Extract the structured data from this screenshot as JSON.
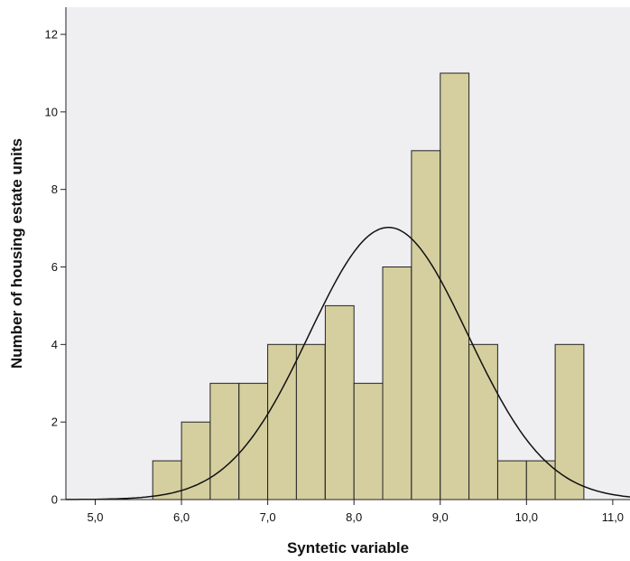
{
  "chart_data": {
    "type": "bar",
    "subtype": "histogram-with-normal-curve",
    "xlabel": "Syntetic variable",
    "ylabel": "Number of housing estate units",
    "xlim": [
      4.66,
      11.2
    ],
    "ylim": [
      0,
      12.7
    ],
    "x_ticks": [
      {
        "value": 5.0,
        "label": "5,0"
      },
      {
        "value": 6.0,
        "label": "6,0"
      },
      {
        "value": 7.0,
        "label": "7,0"
      },
      {
        "value": 8.0,
        "label": "8,0"
      },
      {
        "value": 9.0,
        "label": "9,0"
      },
      {
        "value": 10.0,
        "label": "10,0"
      },
      {
        "value": 11.0,
        "label": "11,0"
      }
    ],
    "y_ticks": [
      {
        "value": 0,
        "label": "0"
      },
      {
        "value": 2,
        "label": "2"
      },
      {
        "value": 4,
        "label": "4"
      },
      {
        "value": 6,
        "label": "6"
      },
      {
        "value": 8,
        "label": "8"
      },
      {
        "value": 10,
        "label": "10"
      },
      {
        "value": 12,
        "label": "12"
      }
    ],
    "bin_width": 0.333,
    "bins": [
      {
        "start": 5.667,
        "count": 1
      },
      {
        "start": 6.0,
        "count": 2
      },
      {
        "start": 6.333,
        "count": 3
      },
      {
        "start": 6.667,
        "count": 3
      },
      {
        "start": 7.0,
        "count": 4
      },
      {
        "start": 7.333,
        "count": 4
      },
      {
        "start": 7.667,
        "count": 5
      },
      {
        "start": 8.0,
        "count": 3
      },
      {
        "start": 8.333,
        "count": 6
      },
      {
        "start": 8.667,
        "count": 9
      },
      {
        "start": 9.0,
        "count": 11
      },
      {
        "start": 9.333,
        "count": 4
      },
      {
        "start": 9.667,
        "count": 1
      },
      {
        "start": 10.0,
        "count": 1
      },
      {
        "start": 10.333,
        "count": 4
      }
    ],
    "normal_curve": {
      "mean": 8.4,
      "sd": 0.92,
      "peak": 7.02
    },
    "grid": false,
    "colors": {
      "plot_background": "#efeff1",
      "bar_fill": "#d5cf9f",
      "bar_stroke": "#222222",
      "curve": "#111111",
      "axis": "#222222"
    }
  }
}
